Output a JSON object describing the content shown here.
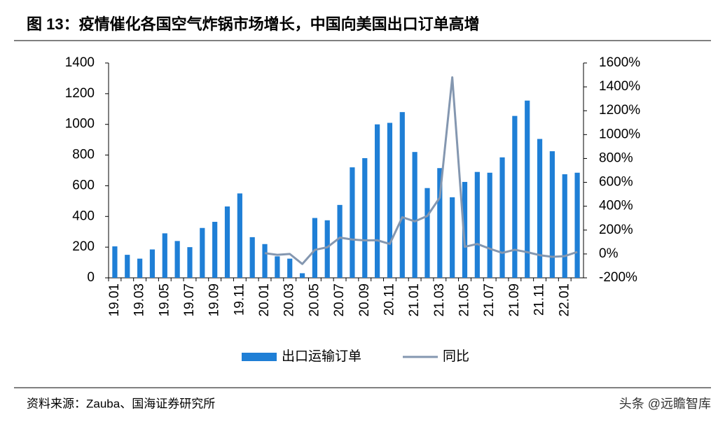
{
  "chart_data": {
    "type": "bar-line",
    "title": "图 13：疫情催化各国空气炸锅市场增长，中国向美国出口订单高增",
    "source": "资料来源：Zauba、国海证券研究所",
    "watermark": "头条 @远瞻智库",
    "categories": [
      "19.01",
      null,
      "19.03",
      null,
      "19.05",
      null,
      "19.07",
      null,
      "19.09",
      null,
      "19.11",
      null,
      "20.01",
      null,
      "20.03",
      null,
      "20.05",
      null,
      "20.07",
      null,
      "20.09",
      null,
      "20.11",
      null,
      "21.01",
      null,
      "21.03",
      null,
      "21.05",
      null,
      "21.07",
      null,
      "21.09",
      null,
      "21.11",
      null,
      "22.01",
      null
    ],
    "series": [
      {
        "name": "出口运输订单",
        "type": "bar",
        "color": "#1f7fd6",
        "values": [
          205,
          150,
          125,
          185,
          290,
          240,
          200,
          325,
          365,
          465,
          550,
          265,
          220,
          140,
          125,
          30,
          390,
          375,
          475,
          720,
          780,
          1000,
          1010,
          1080,
          820,
          585,
          715,
          525,
          625,
          690,
          685,
          785,
          1055,
          1155,
          905,
          825,
          675,
          685
        ]
      },
      {
        "name": "同比",
        "type": "line",
        "axis": "y2",
        "color": "#8497b0",
        "values": [
          null,
          null,
          null,
          null,
          null,
          null,
          null,
          null,
          null,
          null,
          null,
          null,
          7,
          -7,
          0,
          -84,
          34,
          56,
          137,
          121,
          114,
          115,
          84,
          308,
          273,
          318,
          472,
          1480,
          60,
          84,
          44,
          9,
          35,
          15,
          -10,
          -24,
          -18,
          17
        ]
      }
    ],
    "ylim": [
      0,
      1400
    ],
    "yticks": [
      0,
      200,
      400,
      600,
      800,
      1000,
      1200,
      1400
    ],
    "y2lim": [
      -200,
      1600
    ],
    "y2ticks": [
      {
        "value": -200,
        "label": "-200%"
      },
      {
        "value": 0,
        "label": "0%"
      },
      {
        "value": 200,
        "label": "200%"
      },
      {
        "value": 400,
        "label": "400%"
      },
      {
        "value": 600,
        "label": "600%"
      },
      {
        "value": 800,
        "label": "800%"
      },
      {
        "value": 1000,
        "label": "1000%"
      },
      {
        "value": 1200,
        "label": "1200%"
      },
      {
        "value": 1400,
        "label": "1400%"
      },
      {
        "value": 1600,
        "label": "1600%"
      }
    ],
    "legend": "bottom"
  }
}
